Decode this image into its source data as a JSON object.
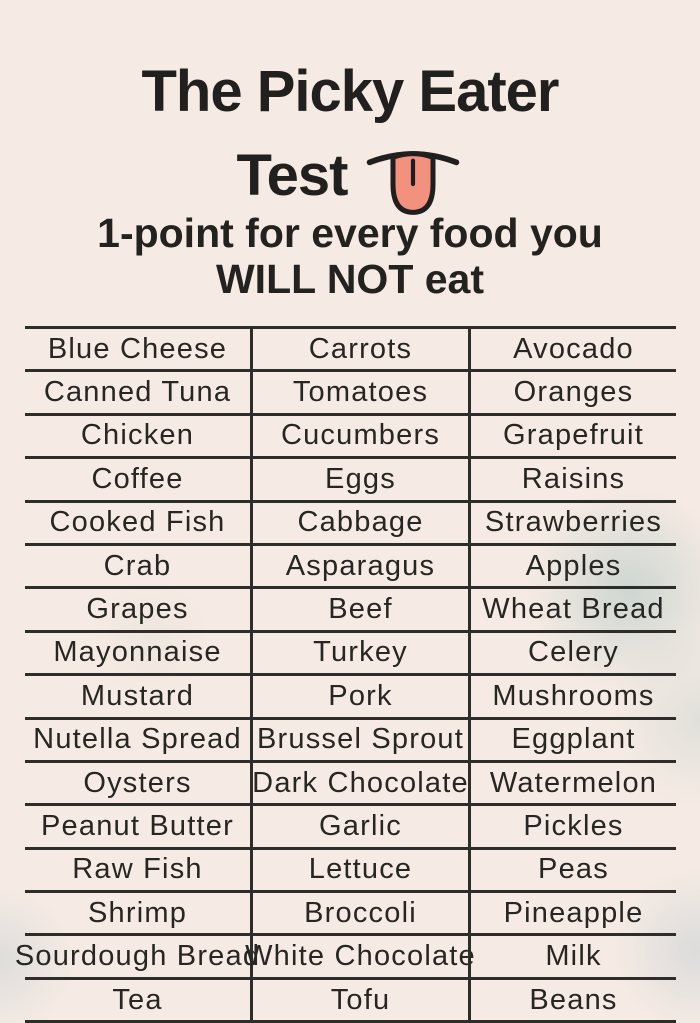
{
  "header": {
    "title_line1": "The Picky Eater",
    "title_line2": "Test",
    "subtitle_line1": "1-point for every food you",
    "subtitle_line2": "WILL NOT eat"
  },
  "colors": {
    "background": "#f6ebe4",
    "text": "#272622",
    "grid_line": "#2e2d29",
    "tongue_fill": "#f2917e",
    "tongue_outline": "#201f1d"
  },
  "icons": {
    "tongue": "tongue-emoji"
  },
  "table": {
    "columns": 3,
    "rows": [
      [
        "Blue Cheese",
        "Carrots",
        "Avocado"
      ],
      [
        "Canned Tuna",
        "Tomatoes",
        "Oranges"
      ],
      [
        "Chicken",
        "Cucumbers",
        "Grapefruit"
      ],
      [
        "Coffee",
        "Eggs",
        "Raisins"
      ],
      [
        "Cooked Fish",
        "Cabbage",
        "Strawberries"
      ],
      [
        "Crab",
        "Asparagus",
        "Apples"
      ],
      [
        "Grapes",
        "Beef",
        "Wheat Bread"
      ],
      [
        "Mayonnaise",
        "Turkey",
        "Celery"
      ],
      [
        "Mustard",
        "Pork",
        "Mushrooms"
      ],
      [
        "Nutella Spread",
        "Brussel Sprout",
        "Eggplant"
      ],
      [
        "Oysters",
        "Dark Chocolate",
        "Watermelon"
      ],
      [
        "Peanut Butter",
        "Garlic",
        "Pickles"
      ],
      [
        "Raw Fish",
        "Lettuce",
        "Peas"
      ],
      [
        "Shrimp",
        "Broccoli",
        "Pineapple"
      ],
      [
        "Sourdough Bread",
        "White Chocolate",
        "Milk"
      ],
      [
        "Tea",
        "Tofu",
        "Beans"
      ]
    ]
  }
}
